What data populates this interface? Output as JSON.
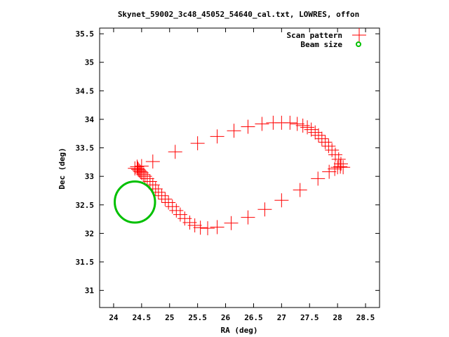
{
  "chart_data": {
    "type": "scatter",
    "title": "Skynet_59002_3c48_45052_54640_cal.txt, LOWRES, offon",
    "xlabel": "RA (deg)",
    "ylabel": "Dec (deg)",
    "xlim": [
      23.75,
      28.75
    ],
    "ylim": [
      30.7,
      35.6
    ],
    "x_ticks": [
      "24",
      "24.5",
      "25",
      "25.5",
      "26",
      "26.5",
      "27",
      "27.5",
      "28",
      "28.5"
    ],
    "y_ticks": [
      "31",
      "31.5",
      "32",
      "32.5",
      "33",
      "33.5",
      "34",
      "34.5",
      "35",
      "35.5"
    ],
    "x_tick_values": [
      24,
      24.5,
      25,
      25.5,
      26,
      26.5,
      27,
      27.5,
      28,
      28.5
    ],
    "y_tick_values": [
      31,
      31.5,
      32,
      32.5,
      33,
      33.5,
      34,
      34.5,
      35,
      35.5
    ],
    "grid": false,
    "legend_position": "top-right",
    "colors": {
      "scan": "#ff0000",
      "beam": "#00c000"
    },
    "series": [
      {
        "name": "Scan pattern",
        "marker": "plus",
        "points": [
          [
            24.42,
            33.17
          ],
          [
            24.43,
            33.14
          ],
          [
            24.44,
            33.12
          ],
          [
            24.46,
            33.1
          ],
          [
            24.48,
            33.08
          ],
          [
            24.5,
            33.06
          ],
          [
            24.53,
            33.03
          ],
          [
            24.56,
            33.0
          ],
          [
            24.6,
            32.96
          ],
          [
            24.65,
            32.91
          ],
          [
            24.7,
            32.85
          ],
          [
            24.75,
            32.78
          ],
          [
            24.8,
            32.72
          ],
          [
            24.86,
            32.66
          ],
          [
            24.92,
            32.6
          ],
          [
            24.98,
            32.54
          ],
          [
            25.05,
            32.47
          ],
          [
            25.12,
            32.4
          ],
          [
            25.19,
            32.33
          ],
          [
            25.27,
            32.26
          ],
          [
            25.36,
            32.19
          ],
          [
            25.45,
            32.14
          ],
          [
            25.55,
            32.1
          ],
          [
            25.68,
            32.09
          ],
          [
            25.85,
            32.11
          ],
          [
            26.1,
            32.18
          ],
          [
            26.4,
            32.28
          ],
          [
            26.7,
            32.42
          ],
          [
            27.0,
            32.58
          ],
          [
            27.33,
            32.76
          ],
          [
            27.65,
            32.96
          ],
          [
            27.85,
            33.08
          ],
          [
            27.95,
            33.13
          ],
          [
            28.0,
            33.16
          ],
          [
            28.05,
            33.17
          ],
          [
            28.1,
            33.16
          ],
          [
            28.06,
            33.22
          ],
          [
            28.02,
            33.3
          ],
          [
            27.96,
            33.38
          ],
          [
            27.9,
            33.46
          ],
          [
            27.84,
            33.53
          ],
          [
            27.78,
            33.6
          ],
          [
            27.72,
            33.66
          ],
          [
            27.66,
            33.72
          ],
          [
            27.6,
            33.77
          ],
          [
            27.53,
            33.82
          ],
          [
            27.46,
            33.86
          ],
          [
            27.38,
            33.89
          ],
          [
            27.28,
            33.92
          ],
          [
            27.15,
            33.94
          ],
          [
            27.0,
            33.94
          ],
          [
            26.85,
            33.94
          ],
          [
            26.65,
            33.92
          ],
          [
            26.4,
            33.87
          ],
          [
            26.15,
            33.8
          ],
          [
            25.85,
            33.7
          ],
          [
            25.5,
            33.58
          ],
          [
            25.1,
            33.43
          ],
          [
            24.7,
            33.26
          ],
          [
            24.5,
            33.18
          ],
          [
            24.38,
            33.14
          ]
        ]
      },
      {
        "name": "Beam size",
        "marker": "circle",
        "center": [
          24.38,
          32.55
        ],
        "radius_deg": 0.36
      }
    ]
  }
}
